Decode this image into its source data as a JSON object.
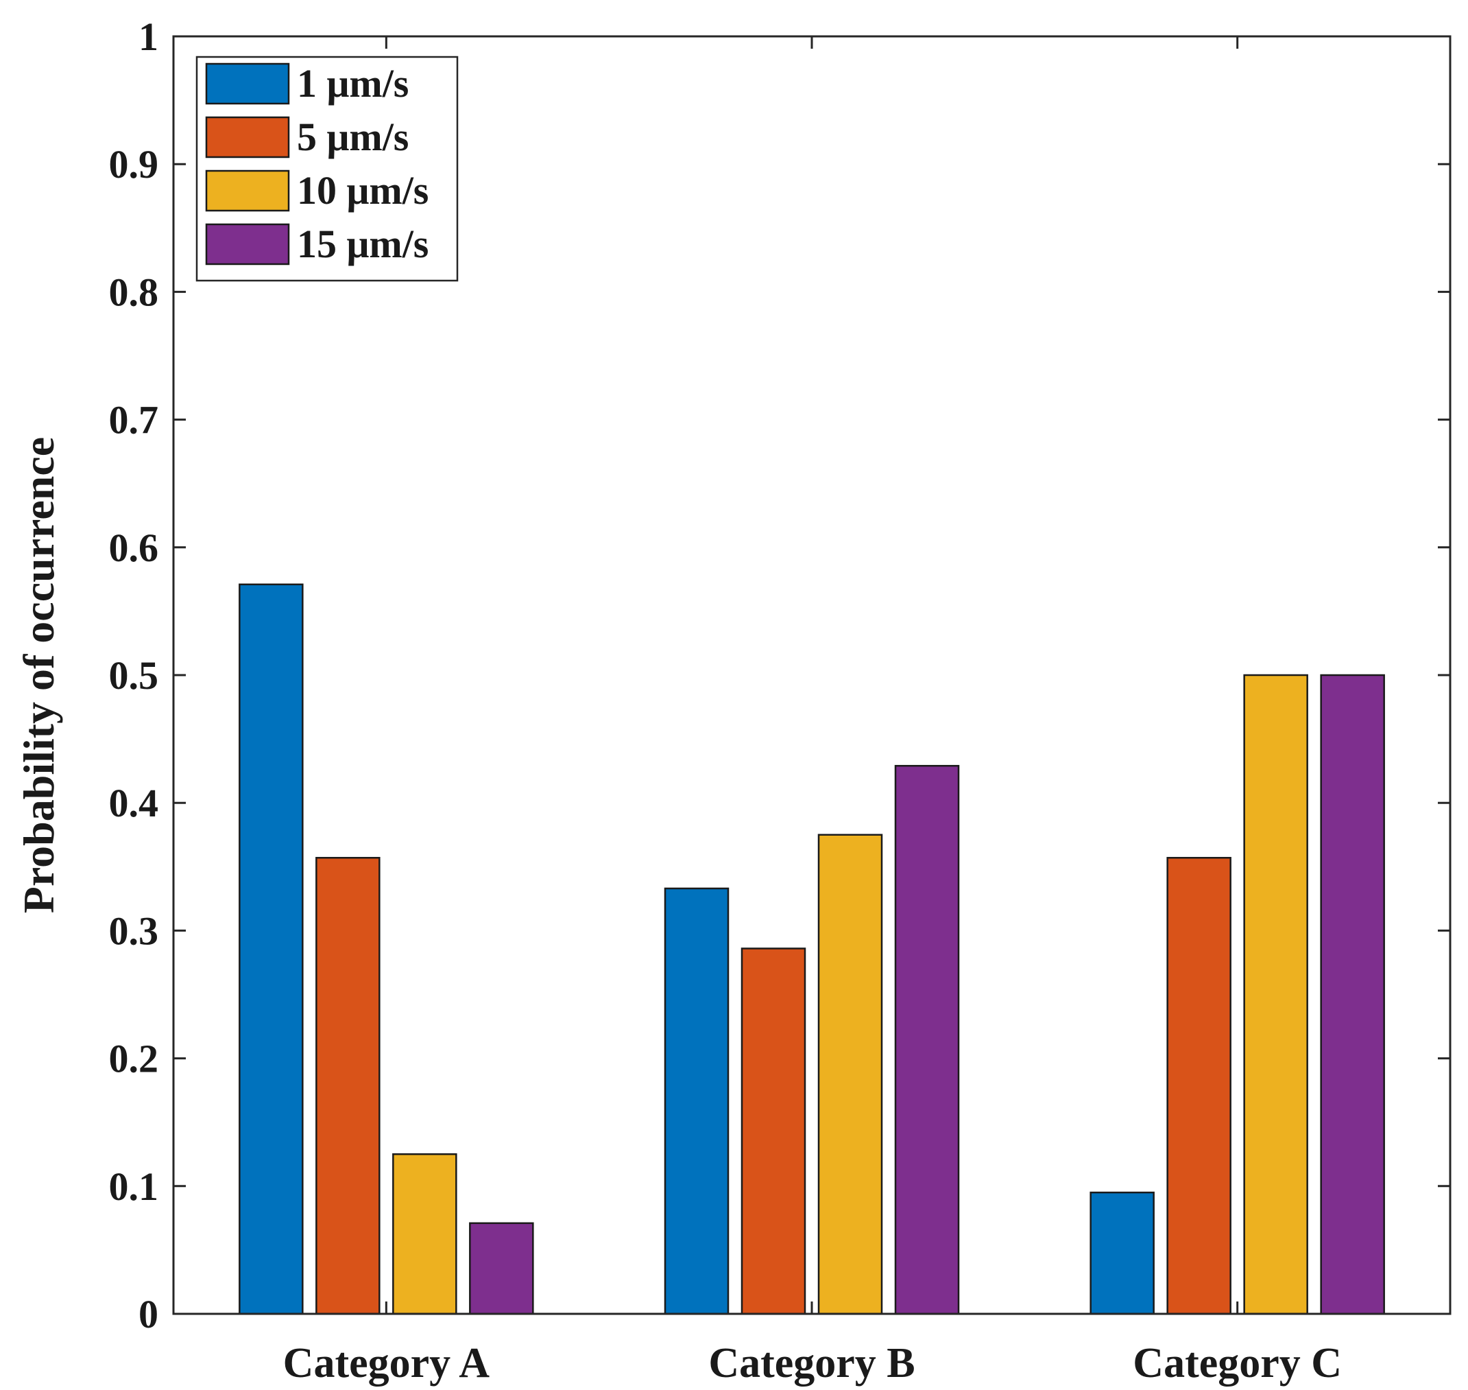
{
  "chart_data": {
    "type": "bar",
    "title": "",
    "xlabel": "",
    "ylabel": "Probability of occurrence",
    "ylim": [
      0,
      1
    ],
    "yticks": [
      "0",
      "0.1",
      "0.2",
      "0.3",
      "0.4",
      "0.5",
      "0.6",
      "0.7",
      "0.8",
      "0.9",
      "1"
    ],
    "categories": [
      "Category A",
      "Category B",
      "Category C"
    ],
    "legend_position": "top-left",
    "series": [
      {
        "name": "1 μm/s",
        "color": "#0072BD",
        "values": [
          0.571,
          0.333,
          0.095
        ]
      },
      {
        "name": "5 μm/s",
        "color": "#D95319",
        "values": [
          0.357,
          0.286,
          0.357
        ]
      },
      {
        "name": "10 μm/s",
        "color": "#EDB120",
        "values": [
          0.125,
          0.375,
          0.5
        ]
      },
      {
        "name": "15 μm/s",
        "color": "#7E2F8E",
        "values": [
          0.071,
          0.429,
          0.5
        ]
      }
    ]
  }
}
